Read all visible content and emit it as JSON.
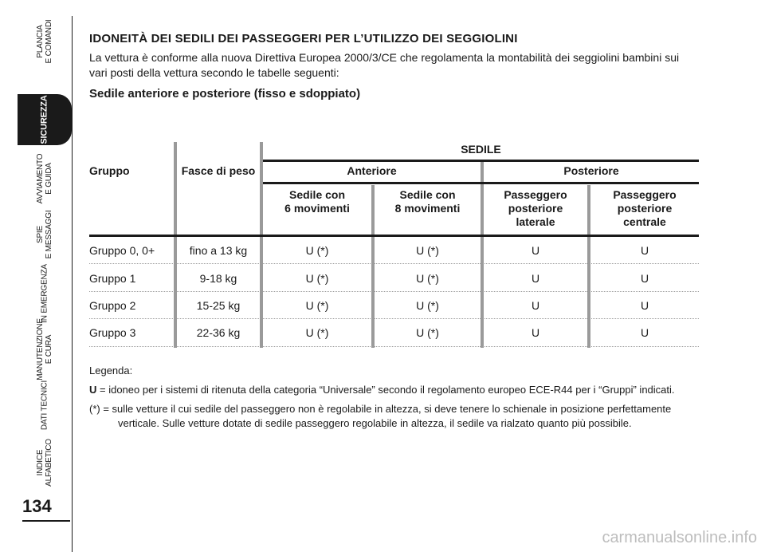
{
  "sidebar": {
    "tabs": [
      {
        "label": "PLANCIA\nE COMANDI",
        "active": false
      },
      {
        "label": "SICUREZZA",
        "active": true
      },
      {
        "label": "AVVIAMENTO\nE GUIDA",
        "active": false
      },
      {
        "label": "SPIE\nE MESSAGGI",
        "active": false
      },
      {
        "label": "IN EMERGENZA",
        "active": false
      },
      {
        "label": "MANUTENZIONE\nE CURA",
        "active": false
      },
      {
        "label": "DATI TECNICI",
        "active": false
      },
      {
        "label": "INDICE\nALFABETICO",
        "active": false
      }
    ],
    "page_number": "134"
  },
  "document": {
    "title": "IDONEITÀ DEI SEDILI DEI PASSEGGERI PER L’UTILIZZO DEI SEGGIOLINI",
    "intro": "La vettura è conforme alla nuova Direttiva Europea 2000/3/CE che regolamenta la montabilità dei seggiolini bambini sui vari posti della vettura secondo le tabelle seguenti:",
    "subtitle": "Sedile anteriore e posteriore (fisso e sdoppiato)"
  },
  "table": {
    "col_gruppo": "Gruppo",
    "col_fasce": "Fasce di peso",
    "col_sedile": "SEDILE",
    "col_anteriore": "Anteriore",
    "col_posteriore": "Posteriore",
    "sub": [
      "Sedile con\n6 movimenti",
      "Sedile con\n8 movimenti",
      "Passeggero\nposteriore\nlaterale",
      "Passeggero\nposteriore\ncentrale"
    ],
    "rows": [
      {
        "gruppo": "Gruppo 0, 0+",
        "peso": "fino a 13 kg",
        "a6": "U (*)",
        "a8": "U (*)",
        "pl": "U",
        "pc": "U"
      },
      {
        "gruppo": "Gruppo 1",
        "peso": "9-18 kg",
        "a6": "U (*)",
        "a8": "U (*)",
        "pl": "U",
        "pc": "U"
      },
      {
        "gruppo": "Gruppo 2",
        "peso": "15-25 kg",
        "a6": "U (*)",
        "a8": "U (*)",
        "pl": "U",
        "pc": "U"
      },
      {
        "gruppo": "Gruppo 3",
        "peso": "22-36 kg",
        "a6": "U (*)",
        "a8": "U (*)",
        "pl": "U",
        "pc": "U"
      }
    ]
  },
  "legend": {
    "heading": "Legenda:",
    "u_key": "U",
    "u_text": " = idoneo per i sistemi di ritenuta della categoria “Universale” secondo il regolamento europeo ECE-R44 per i “Gruppi” indicati.",
    "star_key": "(*)",
    "star_text": " = sulle vetture il cui sedile del passeggero non è regolabile in altezza, si deve tenere lo schienale in posizione perfettamente verticale. Sulle vetture dotate di sedile passeggero regolabile in altezza, il sedile va rialzato quanto più possibile."
  },
  "watermark": "carmanualsonline.info"
}
